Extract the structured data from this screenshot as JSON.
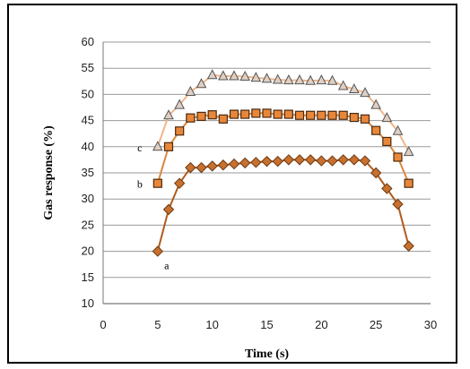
{
  "chart_data": {
    "type": "line",
    "xlabel": "Time (s)",
    "ylabel": "Gas response (%)",
    "xlim": [
      0,
      30
    ],
    "ylim": [
      10,
      60
    ],
    "xticks": [
      0,
      5,
      10,
      15,
      20,
      25,
      30
    ],
    "yticks": [
      10,
      15,
      20,
      25,
      30,
      35,
      40,
      45,
      50,
      55,
      60
    ],
    "grid": "horizontal",
    "x": [
      5,
      6,
      7,
      8,
      9,
      10,
      11,
      12,
      13,
      14,
      15,
      16,
      17,
      18,
      19,
      20,
      21,
      22,
      23,
      24,
      25,
      26,
      27,
      28
    ],
    "series": [
      {
        "name": "a",
        "marker": "diamond",
        "color": "#c8702e",
        "line_color": "#b05a1e",
        "values": [
          20,
          28,
          33,
          36,
          36,
          36.3,
          36.5,
          36.7,
          36.9,
          37,
          37.2,
          37.2,
          37.5,
          37.5,
          37.5,
          37.3,
          37.3,
          37.5,
          37.5,
          37.3,
          35,
          32,
          29,
          21
        ]
      },
      {
        "name": "b",
        "marker": "square",
        "color": "#e8873a",
        "line_color": "#d9883f",
        "values": [
          33,
          40,
          43,
          45.5,
          45.8,
          46.1,
          45.3,
          46.2,
          46.2,
          46.4,
          46.4,
          46.2,
          46.2,
          46,
          46,
          46,
          46,
          46,
          45.6,
          45.3,
          43.1,
          41,
          38,
          33
        ]
      },
      {
        "name": "c",
        "marker": "triangle",
        "color": "#e0cfc4",
        "line_color": "#f1b58a",
        "values": [
          40,
          46,
          48,
          50.5,
          52,
          53.7,
          53.5,
          53.5,
          53.4,
          53.2,
          53,
          52.8,
          52.7,
          52.7,
          52.6,
          52.7,
          52.6,
          51.6,
          51,
          50.3,
          48,
          45.5,
          43,
          39
        ]
      }
    ]
  }
}
